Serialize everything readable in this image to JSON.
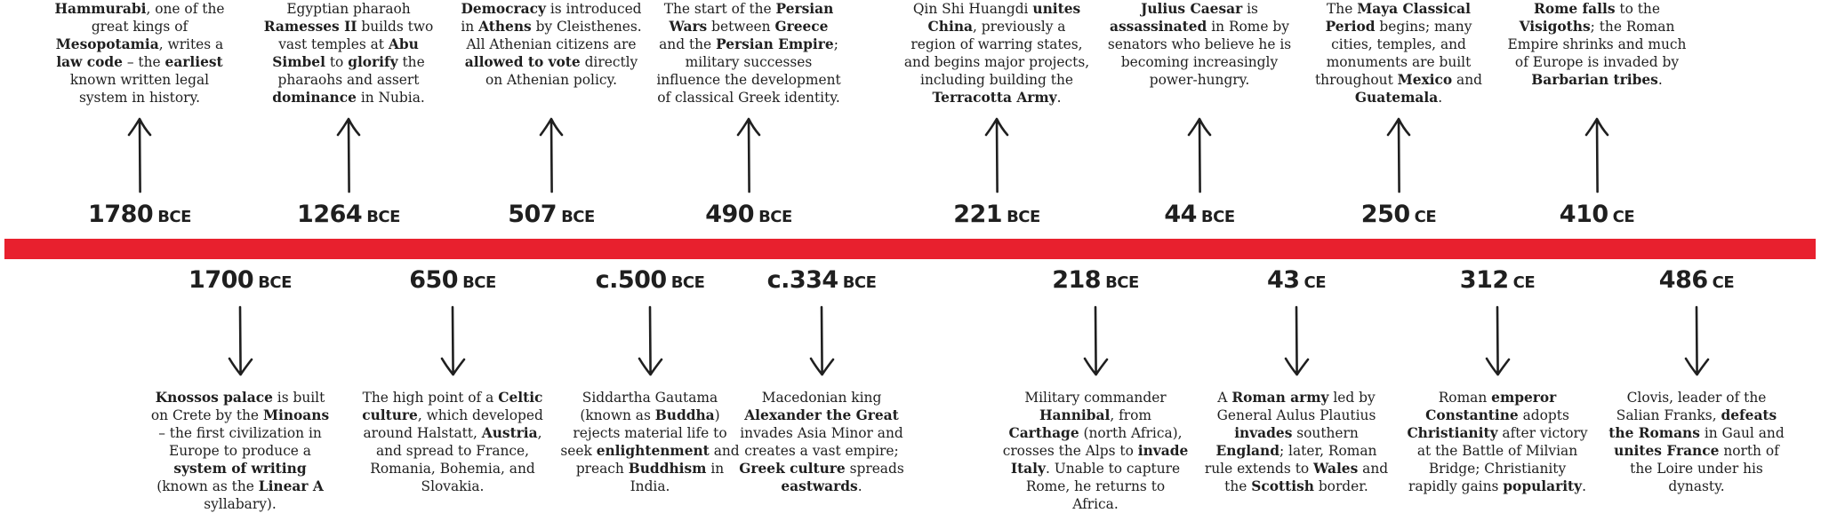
{
  "events": [
    {
      "id": "1780bce",
      "position": "top",
      "center": 157,
      "year": "1780",
      "era": "BCE",
      "text": [
        [
          "b",
          "Hammurabi"
        ],
        [
          "t",
          ", one of the great kings of "
        ],
        [
          "b",
          "Mesopotamia"
        ],
        [
          "t",
          ", writes a "
        ],
        [
          "b",
          "law code"
        ],
        [
          "t",
          " – the "
        ],
        [
          "b",
          "earliest"
        ],
        [
          "t",
          " known written legal system in history."
        ]
      ]
    },
    {
      "id": "1264bce",
      "position": "top",
      "center": 392,
      "year": "1264",
      "era": "BCE",
      "text": [
        [
          "t",
          "Egyptian pharaoh "
        ],
        [
          "b",
          "Ramesses II"
        ],
        [
          "t",
          " builds two vast temples at "
        ],
        [
          "b",
          "Abu Simbel"
        ],
        [
          "t",
          " to "
        ],
        [
          "b",
          "glorify"
        ],
        [
          "t",
          " the pharaohs and assert "
        ],
        [
          "b",
          "dominance"
        ],
        [
          "t",
          " in Nubia."
        ]
      ]
    },
    {
      "id": "507bce",
      "position": "top",
      "center": 620,
      "year": "507",
      "era": "BCE",
      "text": [
        [
          "b",
          "Democracy"
        ],
        [
          "t",
          " is introduced in "
        ],
        [
          "b",
          "Athens"
        ],
        [
          "t",
          " by Cleisthenes. All Athenian citizens are "
        ],
        [
          "b",
          "allowed to vote"
        ],
        [
          "t",
          " directly on Athenian policy."
        ]
      ]
    },
    {
      "id": "490bce",
      "position": "top",
      "center": 842,
      "year": "490",
      "era": "BCE",
      "text": [
        [
          "t",
          "The start of the "
        ],
        [
          "b",
          "Persian Wars"
        ],
        [
          "t",
          " between "
        ],
        [
          "b",
          "Greece"
        ],
        [
          "t",
          " and the "
        ],
        [
          "b",
          "Persian Empire"
        ],
        [
          "t",
          "; military successes influence the development of classical Greek identity."
        ]
      ]
    },
    {
      "id": "221bce",
      "position": "top",
      "center": 1121,
      "year": "221",
      "era": "BCE",
      "text": [
        [
          "t",
          "Qin Shi Huangdi "
        ],
        [
          "b",
          "unites China"
        ],
        [
          "t",
          ", previously a region of warring states, and begins major projects, including building the "
        ],
        [
          "b",
          "Terracotta Army"
        ],
        [
          "t",
          "."
        ]
      ]
    },
    {
      "id": "44bce",
      "position": "top",
      "center": 1349,
      "year": "44",
      "era": "BCE",
      "text": [
        [
          "b",
          "Julius Caesar"
        ],
        [
          "t",
          " is "
        ],
        [
          "b",
          "assassinated"
        ],
        [
          "t",
          " in Rome by senators who believe he is becoming increasingly power-hungry."
        ]
      ]
    },
    {
      "id": "250ce",
      "position": "top",
      "center": 1573,
      "year": "250",
      "era": "CE",
      "text": [
        [
          "t",
          "The "
        ],
        [
          "b",
          "Maya Classical Period"
        ],
        [
          "t",
          " begins; many cities, temples, and monuments are built throughout "
        ],
        [
          "b",
          "Mexico"
        ],
        [
          "t",
          " and "
        ],
        [
          "b",
          "Guatemala"
        ],
        [
          "t",
          "."
        ]
      ]
    },
    {
      "id": "410ce",
      "position": "top",
      "center": 1796,
      "year": "410",
      "era": "CE",
      "text": [
        [
          "b",
          "Rome falls"
        ],
        [
          "t",
          " to the "
        ],
        [
          "b",
          "Visigoths"
        ],
        [
          "t",
          "; the Roman Empire shrinks and much of Europe is invaded by "
        ],
        [
          "b",
          "Barbarian tribes"
        ],
        [
          "t",
          "."
        ]
      ]
    },
    {
      "id": "1700bce",
      "position": "bottom",
      "center": 270,
      "year": "1700",
      "era": "BCE",
      "text": [
        [
          "b",
          "Knossos palace"
        ],
        [
          "t",
          " is built on Crete by the "
        ],
        [
          "b",
          "Minoans"
        ],
        [
          "t",
          " – the first civilization in Europe to produce a "
        ],
        [
          "b",
          "system of writing"
        ],
        [
          "t",
          " (known as the "
        ],
        [
          "b",
          "Linear A"
        ],
        [
          "t",
          " syllabary)."
        ]
      ]
    },
    {
      "id": "650bce",
      "position": "bottom",
      "center": 509,
      "year": "650",
      "era": "BCE",
      "text": [
        [
          "t",
          "The high point of a "
        ],
        [
          "b",
          "Celtic culture"
        ],
        [
          "t",
          ", which developed around Halstatt, "
        ],
        [
          "b",
          "Austria"
        ],
        [
          "t",
          ", and spread to France, Romania, Bohemia, and Slovakia."
        ]
      ]
    },
    {
      "id": "c500bce",
      "position": "bottom",
      "center": 731,
      "year": "c.500",
      "era": "BCE",
      "text": [
        [
          "t",
          "Siddartha Gautama (known as "
        ],
        [
          "b",
          "Buddha"
        ],
        [
          "t",
          ") rejects material life to seek "
        ],
        [
          "b",
          "enlightenment"
        ],
        [
          "t",
          " and preach "
        ],
        [
          "b",
          "Buddhism"
        ],
        [
          "t",
          " in India."
        ]
      ]
    },
    {
      "id": "c334bce",
      "position": "bottom",
      "center": 924,
      "year": "c.334",
      "era": "BCE",
      "text": [
        [
          "t",
          "Macedonian king "
        ],
        [
          "b",
          "Alexander the Great"
        ],
        [
          "t",
          " invades Asia Minor and creates a vast empire; "
        ],
        [
          "b",
          "Greek culture"
        ],
        [
          "t",
          " spreads "
        ],
        [
          "b",
          "eastwards"
        ],
        [
          "t",
          "."
        ]
      ]
    },
    {
      "id": "218bce",
      "position": "bottom",
      "center": 1232,
      "year": "218",
      "era": "BCE",
      "text": [
        [
          "t",
          "Military commander "
        ],
        [
          "b",
          "Hannibal"
        ],
        [
          "t",
          ", from "
        ],
        [
          "b",
          "Carthage"
        ],
        [
          "t",
          " (north Africa), crosses the Alps to "
        ],
        [
          "b",
          "invade Italy"
        ],
        [
          "t",
          ". Unable to capture Rome, he returns to Africa."
        ]
      ]
    },
    {
      "id": "43ce",
      "position": "bottom",
      "center": 1458,
      "year": "43",
      "era": "CE",
      "text": [
        [
          "t",
          "A "
        ],
        [
          "b",
          "Roman army"
        ],
        [
          "t",
          " led by General Aulus Plautius "
        ],
        [
          "b",
          "invades"
        ],
        [
          "t",
          " southern "
        ],
        [
          "b",
          "England"
        ],
        [
          "t",
          "; later, Roman rule extends to "
        ],
        [
          "b",
          "Wales"
        ],
        [
          "t",
          " and the "
        ],
        [
          "b",
          "Scottish"
        ],
        [
          "t",
          " border."
        ]
      ]
    },
    {
      "id": "312ce",
      "position": "bottom",
      "center": 1684,
      "year": "312",
      "era": "CE",
      "text": [
        [
          "t",
          "Roman "
        ],
        [
          "b",
          "emperor Constantine"
        ],
        [
          "t",
          " adopts "
        ],
        [
          "b",
          "Christianity"
        ],
        [
          "t",
          " after victory at the Battle of Milvian Bridge; Christianity rapidly gains "
        ],
        [
          "b",
          "popularity"
        ],
        [
          "t",
          "."
        ]
      ]
    },
    {
      "id": "486ce",
      "position": "bottom",
      "center": 1908,
      "year": "486",
      "era": "CE",
      "text": [
        [
          "t",
          "Clovis, leader of the Salian Franks, "
        ],
        [
          "b",
          "defeats the Romans"
        ],
        [
          "t",
          " in Gaul and "
        ],
        [
          "b",
          "unites France"
        ],
        [
          "t",
          " north of the Loire under his dynasty."
        ]
      ]
    }
  ]
}
